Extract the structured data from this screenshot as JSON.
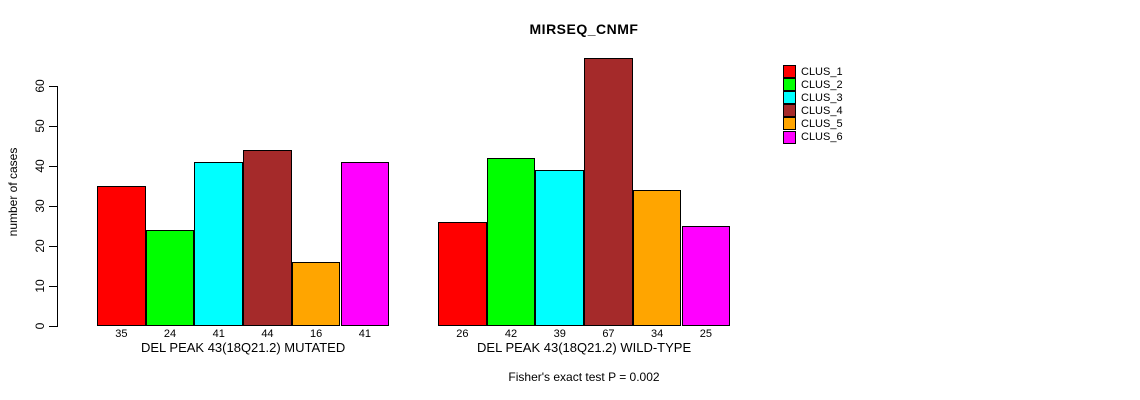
{
  "chart_data": {
    "type": "bar",
    "title": "MIRSEQ_CNMF",
    "ylabel": "number of cases",
    "annotation": "Fisher's exact test P = 0.002",
    "yticks": [
      0,
      10,
      20,
      30,
      40,
      50,
      60
    ],
    "ylim": [
      0,
      67
    ],
    "grid": false,
    "legend_position": "right",
    "categories": [
      "DEL PEAK 43(18Q21.2) MUTATED",
      "DEL PEAK 43(18Q21.2) WILD-TYPE"
    ],
    "series": [
      {
        "name": "CLUS_1",
        "color": "#FF0000",
        "values": [
          35,
          26
        ]
      },
      {
        "name": "CLUS_2",
        "color": "#00FF00",
        "values": [
          24,
          42
        ]
      },
      {
        "name": "CLUS_3",
        "color": "#00FFFF",
        "values": [
          41,
          39
        ]
      },
      {
        "name": "CLUS_4",
        "color": "#A52A2A",
        "values": [
          44,
          67
        ]
      },
      {
        "name": "CLUS_5",
        "color": "#FFA500",
        "values": [
          16,
          34
        ]
      },
      {
        "name": "CLUS_6",
        "color": "#FF00FF",
        "values": [
          41,
          25
        ]
      }
    ]
  }
}
